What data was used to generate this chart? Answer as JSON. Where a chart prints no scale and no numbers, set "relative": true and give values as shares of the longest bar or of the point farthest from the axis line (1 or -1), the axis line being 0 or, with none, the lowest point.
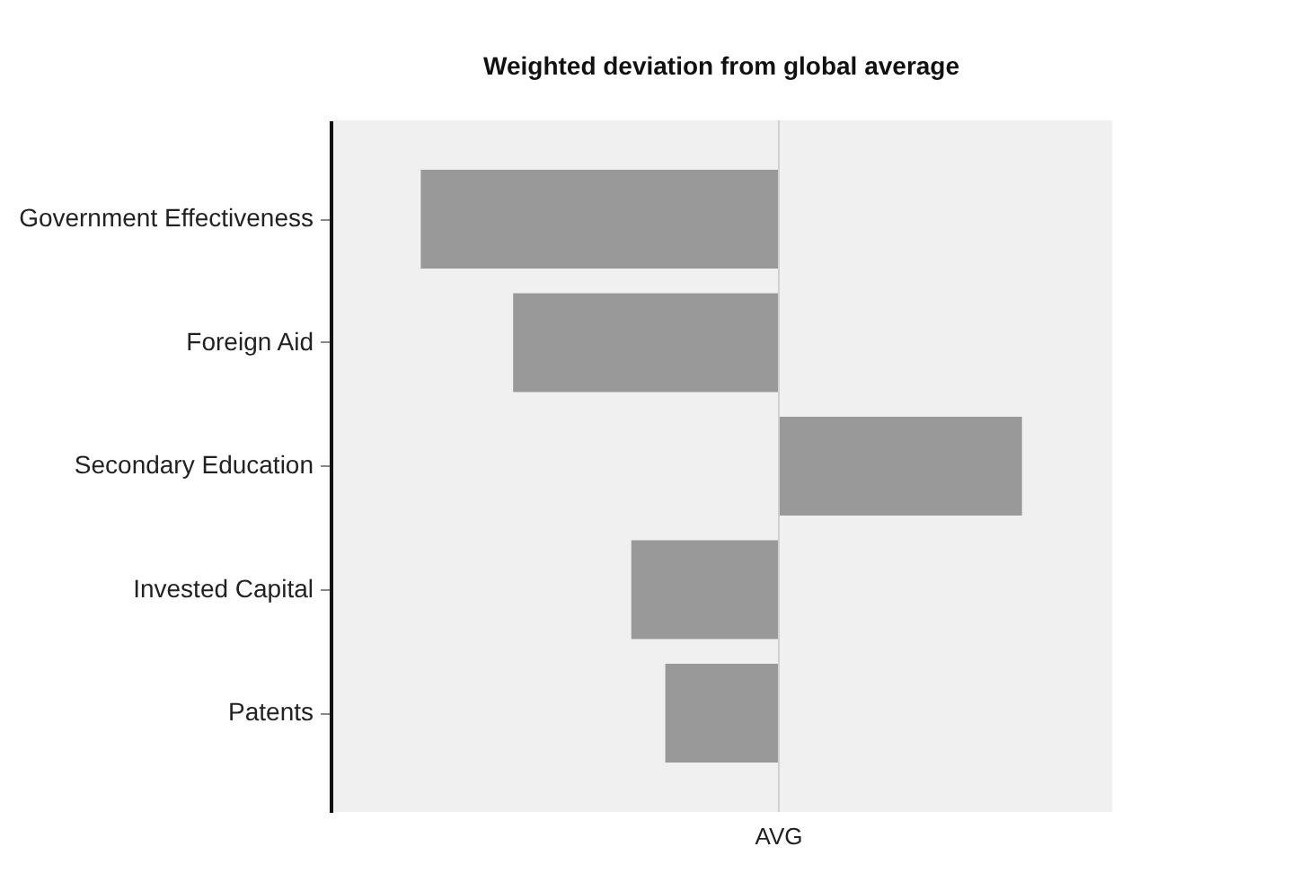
{
  "chart_data": {
    "type": "bar",
    "orientation": "horizontal",
    "relative": true,
    "title": "Weighted deviation from global average",
    "categories": [
      "Government Effectiveness",
      "Foreign Aid",
      "Secondary Education",
      "Invested Capital",
      "Patents"
    ],
    "values": [
      -1,
      -0.742,
      0.679,
      -0.412,
      -0.317
    ],
    "color": "#999999",
    "ref_lines": [
      {
        "axis": "x",
        "value": 0,
        "label": "AVG",
        "color": "#d0d0d0"
      }
    ],
    "grid": false
  }
}
